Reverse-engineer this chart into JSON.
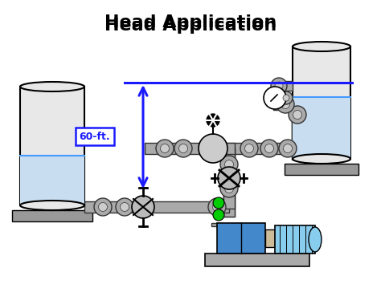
{
  "title": "Head Application",
  "title_fontsize": 16,
  "title_fontweight": "bold",
  "bg_color": "#ffffff",
  "label_color": "#1a1aff",
  "water_level_color": "#4499ff",
  "pipe_color": "#aaaaaa",
  "pipe_edge": "#333333",
  "pump_blue": "#4488cc",
  "pump_blue2": "#66aadd",
  "motor_blue": "#88ccee",
  "motor_tan": "#ccbb99",
  "green_dot": "#00cc00",
  "tank_fill": "#e8e8e8",
  "water_fill": "#c8ddf0",
  "platform_color": "#999999",
  "flange_color": "#aaaaaa",
  "valve_color": "#bbbbbb"
}
